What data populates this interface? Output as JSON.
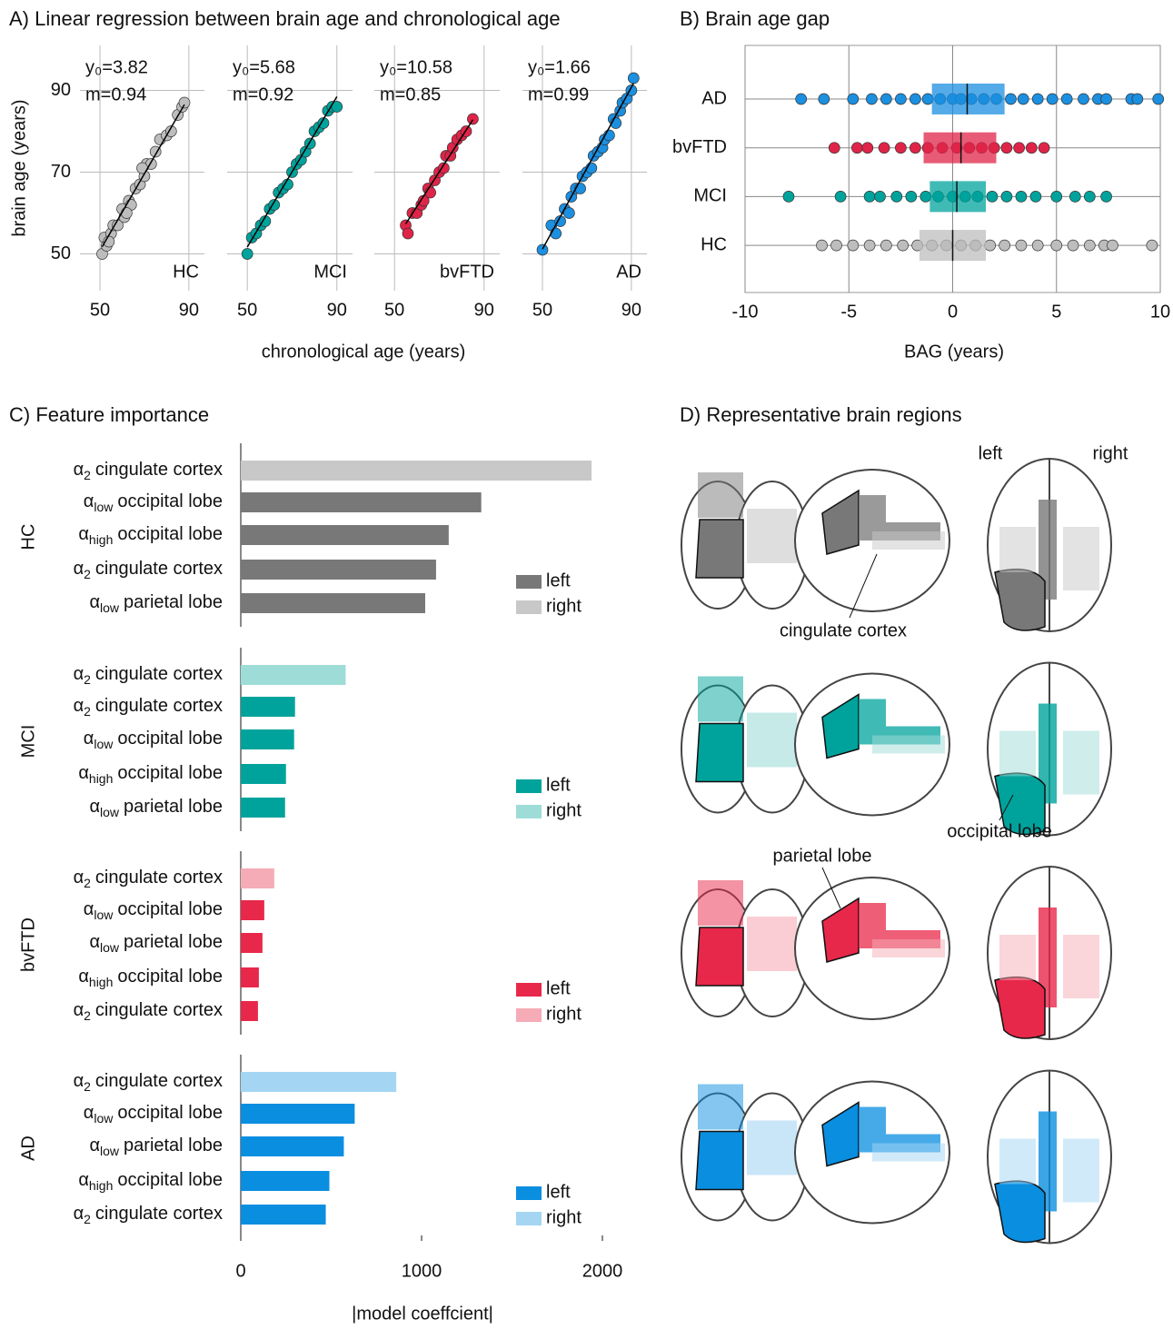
{
  "chart_data": [
    {
      "type": "scatter",
      "title": "A) Linear regression between brain age and chronological age",
      "xlabel": "chronological age (years)",
      "ylabel": "brain age (years)",
      "name": "HC",
      "color": "#bdbdbd",
      "x": [
        51,
        52,
        53,
        55,
        56,
        58,
        60,
        61,
        63,
        64,
        66,
        68,
        70,
        71,
        73,
        75,
        77,
        80,
        82,
        85,
        87,
        88,
        54,
        62,
        69
      ],
      "y": [
        50,
        54,
        52,
        55,
        57,
        57,
        61,
        59,
        63,
        62,
        66,
        67,
        69,
        72,
        72,
        75,
        78,
        79,
        80,
        84,
        86,
        87,
        53,
        60,
        71
      ],
      "fit": {
        "values": [
          3.82,
          0.94
        ],
        "value_labels": [
          "y₀=3.82",
          "m=0.94"
        ]
      },
      "xlim": [
        41,
        97
      ],
      "ylim": [
        41,
        101
      ],
      "xticks": [
        50,
        90
      ],
      "yticks": [
        50,
        70,
        90
      ],
      "grid": true
    },
    {
      "type": "scatter",
      "name": "MCI",
      "color": "#00a39c",
      "x": [
        50,
        52,
        54,
        56,
        58,
        60,
        62,
        64,
        66,
        68,
        70,
        72,
        74,
        76,
        78,
        80,
        82,
        84,
        86,
        88,
        90
      ],
      "y": [
        50,
        54,
        55,
        57,
        58,
        61,
        62,
        65,
        66,
        67,
        70,
        72,
        73,
        75,
        77,
        80,
        81,
        82,
        85,
        86,
        86
      ],
      "fit": {
        "values": [
          5.68,
          0.92
        ],
        "value_labels": [
          "y₀=5.68",
          "m=0.92"
        ]
      },
      "xlim": [
        41,
        97
      ],
      "ylim": [
        41,
        101
      ],
      "xticks": [
        50,
        90
      ],
      "yticks": [
        50,
        70,
        90
      ],
      "grid": true
    },
    {
      "type": "scatter",
      "name": "bvFTD",
      "color": "#e02448",
      "x": [
        55,
        56,
        58,
        60,
        62,
        63,
        65,
        66,
        68,
        70,
        72,
        73,
        75,
        76,
        78,
        80,
        82,
        85
      ],
      "y": [
        57,
        55,
        60,
        60,
        62,
        63,
        66,
        65,
        68,
        70,
        71,
        74,
        74,
        76,
        78,
        79,
        80,
        83
      ],
      "fit": {
        "values": [
          10.58,
          0.85
        ],
        "value_labels": [
          "y₀=10.58",
          "m=0.85"
        ]
      },
      "xlim": [
        41,
        97
      ],
      "ylim": [
        41,
        101
      ],
      "xticks": [
        50,
        90
      ],
      "yticks": [
        50,
        70,
        90
      ],
      "grid": true
    },
    {
      "type": "scatter",
      "name": "AD",
      "color": "#1b8fe0",
      "x": [
        50,
        54,
        56,
        58,
        60,
        62,
        63,
        65,
        67,
        68,
        70,
        72,
        73,
        75,
        77,
        78,
        80,
        82,
        83,
        85,
        86,
        88,
        90,
        91
      ],
      "y": [
        51,
        57,
        55,
        58,
        61,
        60,
        64,
        66,
        66,
        69,
        70,
        71,
        74,
        75,
        76,
        78,
        79,
        83,
        82,
        85,
        87,
        88,
        90,
        93
      ],
      "fit": {
        "values": [
          1.66,
          0.99
        ],
        "value_labels": [
          "y₀=1.66",
          "m=0.99"
        ]
      },
      "xlim": [
        41,
        97
      ],
      "ylim": [
        41,
        101
      ],
      "xticks": [
        50,
        90
      ],
      "yticks": [
        50,
        70,
        90
      ],
      "grid": true
    },
    {
      "type": "box",
      "title": "B) Brain age gap",
      "xlabel": "BAG (years)",
      "xlim": [
        -10,
        10
      ],
      "xticks": [
        -10,
        -5,
        0,
        5,
        10
      ],
      "grid": true,
      "series": [
        {
          "name": "AD",
          "color": "#1b8fe0",
          "box": [
            -1,
            0.7,
            2.5
          ],
          "values": [
            -7.3,
            -6.2,
            -4.8,
            -3.9,
            -3.2,
            -2.5,
            -1.8,
            -1.2,
            -0.6,
            0,
            0.4,
            0.9,
            1.5,
            2.1,
            2.8,
            3.4,
            4.1,
            4.8,
            5.5,
            6.3,
            7.0,
            7.4,
            8.6,
            8.9,
            9.9
          ]
        },
        {
          "name": "bvFTD",
          "color": "#e02448",
          "box": [
            -1.4,
            0.4,
            2.1
          ],
          "values": [
            -5.7,
            -4.6,
            -4.1,
            -3.3,
            -2.5,
            -1.8,
            -1.2,
            -0.5,
            0.2,
            0.8,
            1.4,
            2.0,
            2.6,
            3.2,
            3.8,
            4.4
          ]
        },
        {
          "name": "MCI",
          "color": "#00a39c",
          "box": [
            -1.1,
            0.2,
            1.6
          ],
          "values": [
            -7.9,
            -5.4,
            -4.0,
            -3.5,
            -2.7,
            -2.0,
            -1.3,
            -0.7,
            0,
            0.6,
            1.2,
            1.9,
            2.6,
            3.3,
            4.0,
            5.0,
            5.9,
            6.6,
            7.4
          ]
        },
        {
          "name": "HC",
          "color": "#bdbdbd",
          "box": [
            -1.6,
            0,
            1.6
          ],
          "values": [
            -6.3,
            -5.6,
            -4.8,
            -4.0,
            -3.2,
            -2.4,
            -1.7,
            -1.0,
            -0.3,
            0.4,
            1.1,
            1.8,
            2.5,
            3.3,
            4.1,
            5.0,
            5.8,
            6.6,
            7.3,
            7.7,
            9.6
          ]
        }
      ]
    },
    {
      "type": "hbar",
      "title": "C) Feature importance",
      "xlabel": "|model coeffcient|",
      "xlim": [
        0,
        2000
      ],
      "xticks": [
        0,
        1000,
        2000
      ],
      "groups": [
        {
          "name": "HC",
          "categories": [
            [
              "α",
              "2",
              "cingulate cortex"
            ],
            [
              "α",
              "low",
              "occipital lobe"
            ],
            [
              "α",
              "high",
              "occipital lobe"
            ],
            [
              "α",
              "2",
              "cingulate cortex"
            ],
            [
              "α",
              "low",
              "parietal lobe"
            ]
          ],
          "series": [
            {
              "name": "left",
              "color": "#787878",
              "values": [
                null,
                1330,
                1150,
                1080,
                1020
              ]
            },
            {
              "name": "right",
              "color": "#c8c8c8",
              "values": [
                1940,
                null,
                null,
                null,
                null
              ]
            }
          ]
        },
        {
          "name": "MCI",
          "categories": [
            [
              "α",
              "2",
              "cingulate cortex"
            ],
            [
              "α",
              "2",
              "cingulate cortex"
            ],
            [
              "α",
              "low",
              "occipital lobe"
            ],
            [
              "α",
              "high",
              "occipital lobe"
            ],
            [
              "α",
              "low",
              "parietal lobe"
            ]
          ],
          "series": [
            {
              "name": "left",
              "color": "#00a39c",
              "values": [
                null,
                300,
                295,
                250,
                245
              ]
            },
            {
              "name": "right",
              "color": "#9edcd8",
              "values": [
                580,
                null,
                null,
                null,
                null
              ]
            }
          ]
        },
        {
          "name": "bvFTD",
          "categories": [
            [
              "α",
              "2",
              "cingulate cortex"
            ],
            [
              "α",
              "low",
              "occipital lobe"
            ],
            [
              "α",
              "low",
              "parietal lobe"
            ],
            [
              "α",
              "high",
              "occipital lobe"
            ],
            [
              "α",
              "2",
              "cingulate cortex"
            ]
          ],
          "series": [
            {
              "name": "left",
              "color": "#e8284a",
              "values": [
                null,
                130,
                120,
                100,
                95
              ]
            },
            {
              "name": "right",
              "color": "#f5acb6",
              "values": [
                185,
                null,
                null,
                null,
                null
              ]
            }
          ]
        },
        {
          "name": "AD",
          "categories": [
            [
              "α",
              "2",
              "cingulate cortex"
            ],
            [
              "α",
              "low",
              "occipital lobe"
            ],
            [
              "α",
              "low",
              "parietal lobe"
            ],
            [
              "α",
              "high",
              "occipital lobe"
            ],
            [
              "α",
              "2",
              "cingulate cortex"
            ]
          ],
          "series": [
            {
              "name": "left",
              "color": "#0a8ee0",
              "values": [
                null,
                630,
                570,
                490,
                470
              ]
            },
            {
              "name": "right",
              "color": "#a4d6f4",
              "values": [
                860,
                null,
                null,
                null,
                null
              ]
            }
          ]
        }
      ]
    }
  ],
  "brain_panel": {
    "title": "D) Representative brain regions",
    "hemispheres": [
      "left",
      "right"
    ],
    "annotations": [
      "cingulate cortex",
      "occipital lobe",
      "parietal lobe"
    ]
  }
}
